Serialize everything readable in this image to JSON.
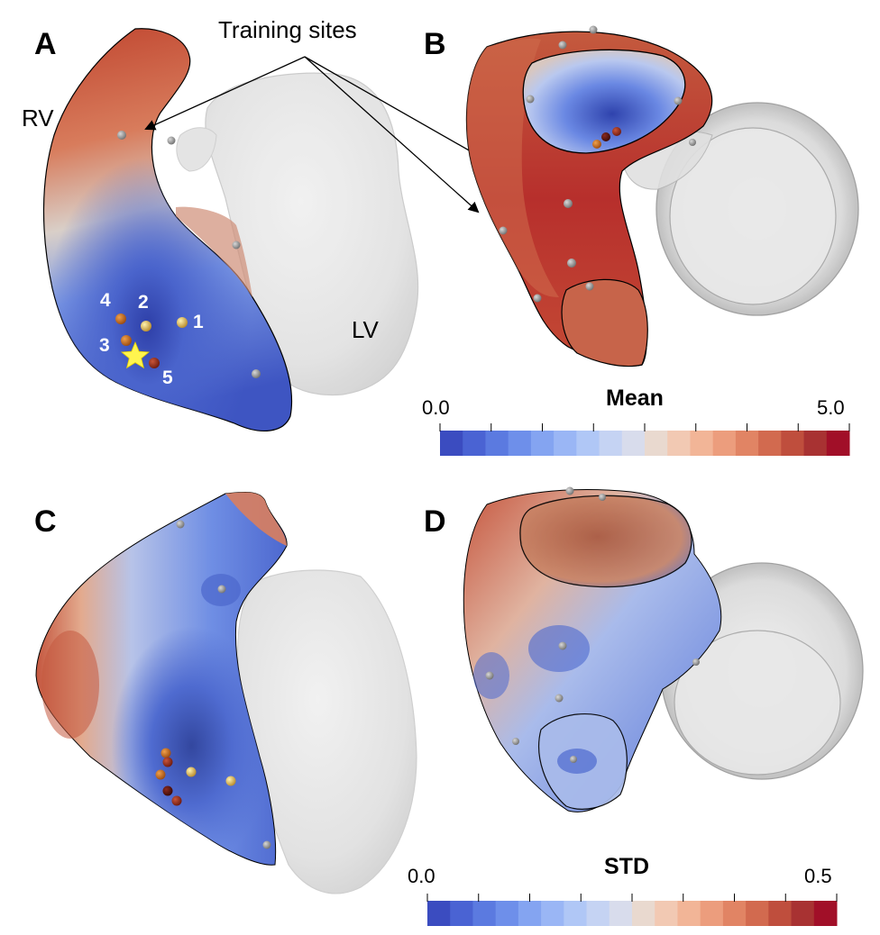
{
  "panels": {
    "a": {
      "letter": "A",
      "rv_label": "RV",
      "lv_label": "LV",
      "site_numbers": [
        "1",
        "2",
        "3",
        "4",
        "5"
      ]
    },
    "b": {
      "letter": "B"
    },
    "c": {
      "letter": "C"
    },
    "d": {
      "letter": "D"
    }
  },
  "annotation": {
    "training_sites": "Training sites"
  },
  "colorbars": {
    "mean": {
      "title": "Mean",
      "min": "0.0",
      "max": "5.0",
      "colors": [
        "#3b4cc0",
        "#4a63d3",
        "#5b7ae0",
        "#6e8fea",
        "#84a4f1",
        "#9ab6f5",
        "#b0c7f6",
        "#c5d3f3",
        "#d8dcec",
        "#e9d9cf",
        "#f2c9b3",
        "#f2b597",
        "#ec9d7d",
        "#e18464",
        "#d26a4f",
        "#bf4e3d",
        "#a83232",
        "#a10f28"
      ]
    },
    "std": {
      "title": "STD",
      "min": "0.0",
      "max": "0.5",
      "colors": [
        "#3b4cc0",
        "#4a63d3",
        "#5b7ae0",
        "#6e8fea",
        "#84a4f1",
        "#9ab6f5",
        "#b0c7f6",
        "#c5d3f3",
        "#d8dcec",
        "#e9d9cf",
        "#f2c9b3",
        "#f2b597",
        "#ec9d7d",
        "#e18464",
        "#d26a4f",
        "#bf4e3d",
        "#a83232",
        "#a10f28"
      ]
    }
  },
  "palette": {
    "low": "#3b4cc0",
    "mid": "#dddddd",
    "high": "#b40426",
    "lv_grey": "#e6e6e6"
  }
}
